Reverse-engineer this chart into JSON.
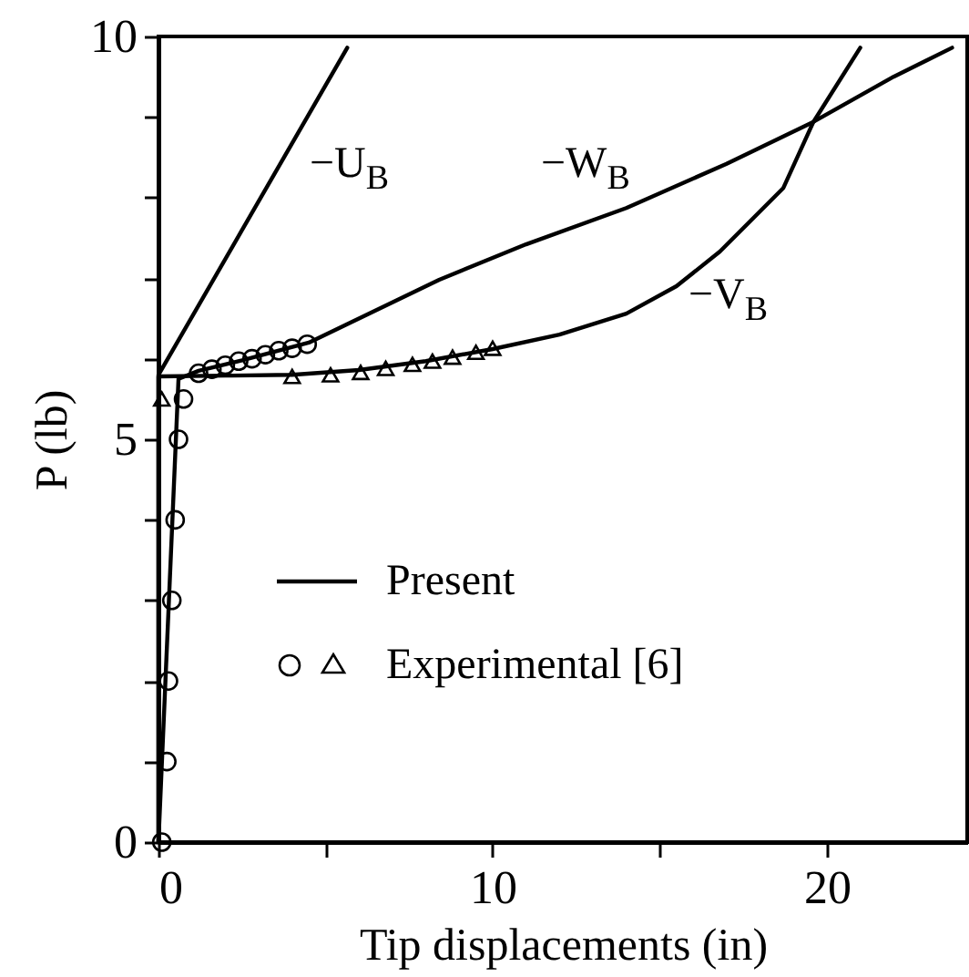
{
  "chart_data": {
    "type": "line",
    "xlabel": "Tip displacements (in)",
    "ylabel": "P (lb)",
    "xlim": [
      0,
      24.2
    ],
    "ylim": [
      0,
      10
    ],
    "xticks": [
      0,
      {
        "value": 5,
        "label": null
      },
      10,
      {
        "value": 15,
        "label": null
      },
      20
    ],
    "yticks": [
      0,
      {
        "value": 1,
        "label": null
      },
      {
        "value": 2,
        "label": null
      },
      {
        "value": 3,
        "label": null
      },
      {
        "value": 4,
        "label": null
      },
      5,
      {
        "value": 6,
        "label": null
      },
      {
        "value": 7,
        "label": null
      },
      {
        "value": 8,
        "label": null
      },
      {
        "value": 9,
        "label": null
      },
      10
    ],
    "grid": false,
    "series": [
      {
        "type": "line",
        "name": "−U$_{B}$",
        "color": "#000000",
        "x": [
          0,
          0,
          5.65
        ],
        "values": [
          0,
          5.8,
          9.86
        ]
      },
      {
        "type": "line",
        "name": "−W$_{B}$",
        "color": "#000000",
        "x": [
          0,
          0.6,
          1.2,
          2.5,
          4.5,
          8.4,
          11,
          14,
          17,
          19.6,
          22,
          23.75
        ],
        "values": [
          0,
          5.75,
          5.85,
          5.98,
          6.2,
          6.98,
          7.42,
          7.87,
          8.42,
          8.94,
          9.5,
          9.86
        ]
      },
      {
        "type": "line",
        "name": "−V$_{B}$",
        "color": "#000000",
        "x": [
          0,
          0,
          2,
          4,
          6,
          8,
          10,
          12,
          14,
          15.5,
          16.8,
          18.7,
          19.6,
          21
        ],
        "values": [
          0,
          5.78,
          5.79,
          5.8,
          5.86,
          5.97,
          6.12,
          6.3,
          6.56,
          6.9,
          7.33,
          8.12,
          8.94,
          9.86
        ]
      },
      {
        "type": "scatter",
        "marker": "circle",
        "color": "#000000",
        "x": [
          0.1,
          0.25,
          0.3,
          0.4,
          0.5,
          0.6,
          0.75,
          1.2,
          1.6,
          2.0,
          2.4,
          2.8,
          3.2,
          3.6,
          4.0,
          4.45
        ],
        "values": [
          0,
          1,
          2,
          3,
          4,
          5,
          5.5,
          5.82,
          5.87,
          5.92,
          5.97,
          6.0,
          6.05,
          6.1,
          6.13,
          6.18
        ]
      },
      {
        "type": "scatter",
        "marker": "triangle",
        "color": "#000000",
        "x": [
          0.1,
          4.0,
          5.15,
          6.05,
          6.8,
          7.6,
          8.2,
          8.8,
          9.5,
          10.0
        ],
        "values": [
          5.5,
          5.78,
          5.8,
          5.83,
          5.88,
          5.93,
          5.97,
          6.02,
          6.08,
          6.13
        ]
      }
    ],
    "annotations": [
      "Present",
      "Experimental [6]"
    ]
  }
}
